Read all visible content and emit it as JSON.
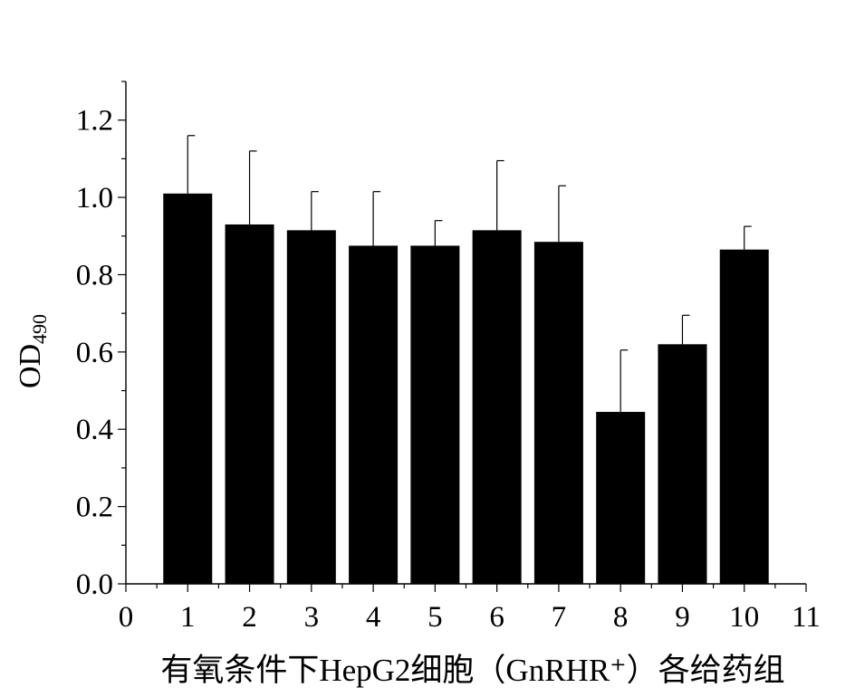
{
  "chart_data": {
    "type": "bar",
    "xlabel": "有氧条件下HepG2细胞（GnRHR⁺）各给药组",
    "ylabel_main": "OD",
    "ylabel_sub": "490",
    "xlim": [
      0,
      11
    ],
    "ylim": [
      0,
      1.3
    ],
    "xticks": [
      "0",
      "1",
      "2",
      "3",
      "4",
      "5",
      "6",
      "7",
      "8",
      "9",
      "10",
      "11"
    ],
    "yticks": [
      "0.0",
      "0.2",
      "0.4",
      "0.6",
      "0.8",
      "1.0",
      "1.2"
    ],
    "x": [
      1,
      2,
      3,
      4,
      5,
      6,
      7,
      8,
      9,
      10
    ],
    "values": [
      1.01,
      0.93,
      0.915,
      0.875,
      0.875,
      0.915,
      0.885,
      0.445,
      0.62,
      0.865
    ],
    "errors": [
      0.15,
      0.19,
      0.1,
      0.14,
      0.065,
      0.18,
      0.145,
      0.16,
      0.075,
      0.06
    ],
    "bar_color": "#000000",
    "grid": false,
    "legend": "none"
  }
}
